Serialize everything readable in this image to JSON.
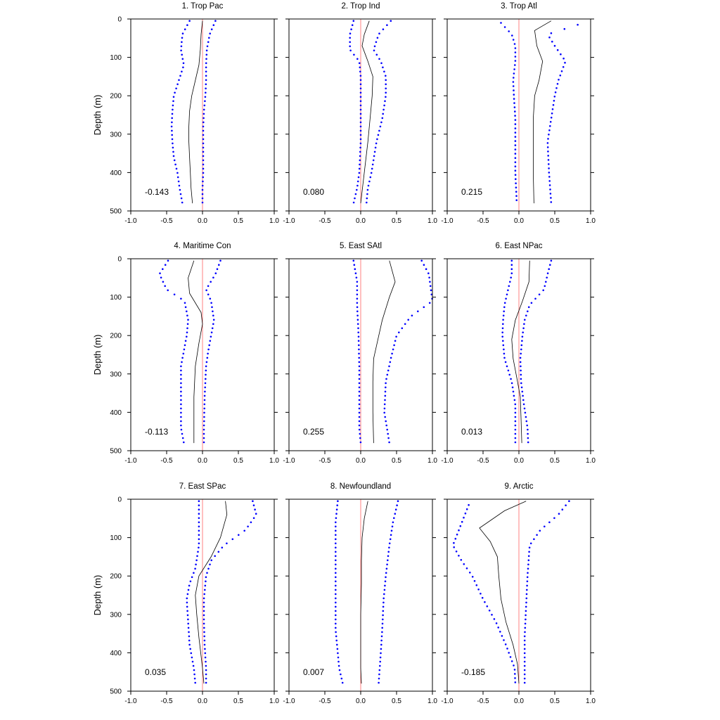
{
  "chart_data": [
    {
      "title": "1. Trop Pac",
      "ylabel": "Depth (m)",
      "annotation": "-0.143",
      "mean": [
        [
          0.0,
          5
        ],
        [
          -0.02,
          40
        ],
        [
          -0.03,
          80
        ],
        [
          -0.05,
          120
        ],
        [
          -0.1,
          160
        ],
        [
          -0.15,
          200
        ],
        [
          -0.18,
          240
        ],
        [
          -0.19,
          280
        ],
        [
          -0.19,
          320
        ],
        [
          -0.18,
          360
        ],
        [
          -0.17,
          400
        ],
        [
          -0.16,
          440
        ],
        [
          -0.14,
          480
        ]
      ],
      "lower": [
        [
          -0.18,
          5
        ],
        [
          -0.28,
          40
        ],
        [
          -0.3,
          80
        ],
        [
          -0.26,
          120
        ],
        [
          -0.33,
          160
        ],
        [
          -0.4,
          200
        ],
        [
          -0.42,
          240
        ],
        [
          -0.43,
          280
        ],
        [
          -0.42,
          320
        ],
        [
          -0.4,
          360
        ],
        [
          -0.35,
          400
        ],
        [
          -0.32,
          440
        ],
        [
          -0.28,
          480
        ]
      ],
      "upper": [
        [
          0.18,
          5
        ],
        [
          0.1,
          40
        ],
        [
          0.06,
          80
        ],
        [
          0.05,
          120
        ],
        [
          0.05,
          160
        ],
        [
          0.04,
          200
        ],
        [
          0.02,
          240
        ],
        [
          0.01,
          280
        ],
        [
          0.01,
          320
        ],
        [
          0.01,
          360
        ],
        [
          0.01,
          400
        ],
        [
          0.0,
          440
        ],
        [
          0.0,
          480
        ]
      ]
    },
    {
      "title": "2. Trop Ind",
      "ylabel": "",
      "annotation": "0.080",
      "mean": [
        [
          0.12,
          5
        ],
        [
          0.05,
          40
        ],
        [
          0.02,
          70
        ],
        [
          0.1,
          110
        ],
        [
          0.17,
          150
        ],
        [
          0.16,
          200
        ],
        [
          0.13,
          260
        ],
        [
          0.1,
          320
        ],
        [
          0.05,
          400
        ],
        [
          0.0,
          480
        ]
      ],
      "lower": [
        [
          -0.1,
          5
        ],
        [
          -0.15,
          40
        ],
        [
          -0.15,
          80
        ],
        [
          -0.02,
          110
        ],
        [
          0.0,
          150
        ],
        [
          0.0,
          200
        ],
        [
          0.0,
          260
        ],
        [
          0.0,
          320
        ],
        [
          -0.02,
          400
        ],
        [
          -0.05,
          440
        ],
        [
          -0.1,
          480
        ]
      ],
      "upper": [
        [
          0.42,
          5
        ],
        [
          0.25,
          40
        ],
        [
          0.18,
          80
        ],
        [
          0.28,
          110
        ],
        [
          0.35,
          150
        ],
        [
          0.35,
          200
        ],
        [
          0.3,
          260
        ],
        [
          0.22,
          320
        ],
        [
          0.15,
          400
        ],
        [
          0.1,
          440
        ],
        [
          0.08,
          480
        ]
      ]
    },
    {
      "title": "3. Trop Atl",
      "ylabel": "",
      "annotation": "0.215",
      "mean": [
        [
          0.45,
          5
        ],
        [
          0.22,
          30
        ],
        [
          0.25,
          70
        ],
        [
          0.33,
          110
        ],
        [
          0.28,
          160
        ],
        [
          0.22,
          200
        ],
        [
          0.2,
          260
        ],
        [
          0.2,
          320
        ],
        [
          0.2,
          400
        ],
        [
          0.21,
          480
        ]
      ],
      "lower": [
        [
          -0.25,
          10
        ],
        [
          -0.1,
          40
        ],
        [
          -0.05,
          70
        ],
        [
          -0.05,
          110
        ],
        [
          -0.08,
          160
        ],
        [
          -0.07,
          200
        ],
        [
          -0.05,
          260
        ],
        [
          -0.05,
          320
        ],
        [
          -0.05,
          400
        ],
        [
          -0.03,
          480
        ]
      ],
      "upper": [
        [
          0.82,
          15
        ],
        [
          0.4,
          40
        ],
        [
          0.5,
          70
        ],
        [
          0.65,
          110
        ],
        [
          0.55,
          160
        ],
        [
          0.5,
          200
        ],
        [
          0.45,
          260
        ],
        [
          0.4,
          320
        ],
        [
          0.42,
          400
        ],
        [
          0.45,
          480
        ]
      ]
    },
    {
      "title": "4. Maritime Con",
      "ylabel": "Depth (m)",
      "annotation": "-0.113",
      "mean": [
        [
          -0.12,
          5
        ],
        [
          -0.2,
          50
        ],
        [
          -0.18,
          90
        ],
        [
          -0.02,
          140
        ],
        [
          0.0,
          170
        ],
        [
          -0.05,
          220
        ],
        [
          -0.1,
          280
        ],
        [
          -0.12,
          360
        ],
        [
          -0.12,
          440
        ],
        [
          -0.12,
          480
        ]
      ],
      "lower": [
        [
          -0.48,
          5
        ],
        [
          -0.6,
          40
        ],
        [
          -0.5,
          80
        ],
        [
          -0.25,
          110
        ],
        [
          -0.2,
          160
        ],
        [
          -0.22,
          200
        ],
        [
          -0.26,
          240
        ],
        [
          -0.3,
          280
        ],
        [
          -0.3,
          360
        ],
        [
          -0.3,
          440
        ],
        [
          -0.26,
          480
        ]
      ],
      "upper": [
        [
          0.25,
          5
        ],
        [
          0.18,
          40
        ],
        [
          0.05,
          80
        ],
        [
          0.12,
          110
        ],
        [
          0.16,
          160
        ],
        [
          0.12,
          200
        ],
        [
          0.08,
          240
        ],
        [
          0.05,
          280
        ],
        [
          0.03,
          360
        ],
        [
          0.02,
          440
        ],
        [
          0.02,
          480
        ]
      ]
    },
    {
      "title": "5. East SAtl",
      "ylabel": "",
      "annotation": "0.255",
      "mean": [
        [
          0.4,
          5
        ],
        [
          0.48,
          60
        ],
        [
          0.4,
          100
        ],
        [
          0.3,
          160
        ],
        [
          0.24,
          210
        ],
        [
          0.18,
          260
        ],
        [
          0.17,
          320
        ],
        [
          0.17,
          400
        ],
        [
          0.18,
          480
        ]
      ],
      "lower": [
        [
          -0.1,
          5
        ],
        [
          -0.05,
          60
        ],
        [
          -0.05,
          120
        ],
        [
          -0.03,
          200
        ],
        [
          -0.02,
          280
        ],
        [
          -0.02,
          360
        ],
        [
          -0.02,
          440
        ],
        [
          0.0,
          480
        ]
      ],
      "upper": [
        [
          0.85,
          5
        ],
        [
          0.95,
          40
        ],
        [
          1.0,
          110
        ],
        [
          0.7,
          150
        ],
        [
          0.5,
          200
        ],
        [
          0.42,
          260
        ],
        [
          0.35,
          320
        ],
        [
          0.33,
          400
        ],
        [
          0.4,
          480
        ]
      ]
    },
    {
      "title": "6. East NPac",
      "ylabel": "",
      "annotation": "0.013",
      "mean": [
        [
          0.15,
          5
        ],
        [
          0.14,
          60
        ],
        [
          0.05,
          110
        ],
        [
          -0.05,
          160
        ],
        [
          -0.1,
          210
        ],
        [
          -0.08,
          260
        ],
        [
          -0.02,
          320
        ],
        [
          0.02,
          360
        ],
        [
          0.03,
          420
        ],
        [
          0.04,
          480
        ]
      ],
      "lower": [
        [
          -0.1,
          5
        ],
        [
          -0.1,
          40
        ],
        [
          -0.15,
          80
        ],
        [
          -0.2,
          120
        ],
        [
          -0.22,
          160
        ],
        [
          -0.23,
          200
        ],
        [
          -0.2,
          260
        ],
        [
          -0.1,
          320
        ],
        [
          -0.05,
          380
        ],
        [
          -0.05,
          440
        ],
        [
          -0.05,
          480
        ]
      ],
      "upper": [
        [
          0.45,
          5
        ],
        [
          0.4,
          40
        ],
        [
          0.35,
          80
        ],
        [
          0.15,
          120
        ],
        [
          0.08,
          160
        ],
        [
          0.05,
          200
        ],
        [
          0.02,
          260
        ],
        [
          0.03,
          320
        ],
        [
          0.07,
          380
        ],
        [
          0.12,
          440
        ],
        [
          0.13,
          480
        ]
      ]
    },
    {
      "title": "7. East SPac",
      "ylabel": "Depth (m)",
      "annotation": "0.035",
      "mean": [
        [
          0.32,
          5
        ],
        [
          0.34,
          40
        ],
        [
          0.25,
          100
        ],
        [
          0.12,
          150
        ],
        [
          -0.05,
          200
        ],
        [
          -0.1,
          250
        ],
        [
          -0.08,
          300
        ],
        [
          -0.05,
          360
        ],
        [
          0.0,
          440
        ],
        [
          0.02,
          480
        ]
      ],
      "lower": [
        [
          -0.05,
          5
        ],
        [
          -0.05,
          60
        ],
        [
          -0.05,
          120
        ],
        [
          -0.1,
          180
        ],
        [
          -0.18,
          220
        ],
        [
          -0.22,
          260
        ],
        [
          -0.2,
          320
        ],
        [
          -0.18,
          380
        ],
        [
          -0.12,
          440
        ],
        [
          -0.1,
          480
        ]
      ],
      "upper": [
        [
          0.7,
          5
        ],
        [
          0.75,
          40
        ],
        [
          0.6,
          80
        ],
        [
          0.3,
          120
        ],
        [
          0.12,
          160
        ],
        [
          0.05,
          200
        ],
        [
          0.02,
          260
        ],
        [
          0.02,
          320
        ],
        [
          0.03,
          380
        ],
        [
          0.05,
          440
        ],
        [
          0.05,
          480
        ]
      ]
    },
    {
      "title": "8. Newfoundland",
      "ylabel": "",
      "annotation": "0.007",
      "mean": [
        [
          0.1,
          5
        ],
        [
          0.05,
          50
        ],
        [
          0.02,
          100
        ],
        [
          0.01,
          160
        ],
        [
          0.01,
          220
        ],
        [
          0.0,
          300
        ],
        [
          0.0,
          380
        ],
        [
          0.0,
          440
        ],
        [
          0.01,
          480
        ]
      ],
      "lower": [
        [
          -0.32,
          5
        ],
        [
          -0.35,
          60
        ],
        [
          -0.35,
          120
        ],
        [
          -0.35,
          200
        ],
        [
          -0.35,
          280
        ],
        [
          -0.35,
          340
        ],
        [
          -0.32,
          400
        ],
        [
          -0.3,
          440
        ],
        [
          -0.25,
          480
        ]
      ],
      "upper": [
        [
          0.52,
          5
        ],
        [
          0.45,
          60
        ],
        [
          0.4,
          120
        ],
        [
          0.35,
          200
        ],
        [
          0.32,
          260
        ],
        [
          0.3,
          340
        ],
        [
          0.28,
          400
        ],
        [
          0.25,
          480
        ]
      ]
    },
    {
      "title": "9. Arctic",
      "ylabel": "",
      "annotation": "-0.185",
      "mean": [
        [
          0.1,
          5
        ],
        [
          -0.2,
          30
        ],
        [
          -0.55,
          75
        ],
        [
          -0.4,
          110
        ],
        [
          -0.3,
          150
        ],
        [
          -0.28,
          200
        ],
        [
          -0.25,
          260
        ],
        [
          -0.18,
          320
        ],
        [
          -0.08,
          380
        ],
        [
          -0.02,
          430
        ],
        [
          0.0,
          480
        ]
      ],
      "lower": [
        [
          -0.7,
          15
        ],
        [
          -0.92,
          120
        ],
        [
          -0.8,
          160
        ],
        [
          -0.65,
          200
        ],
        [
          -0.5,
          260
        ],
        [
          -0.32,
          320
        ],
        [
          -0.18,
          380
        ],
        [
          -0.06,
          440
        ],
        [
          -0.05,
          480
        ]
      ],
      "upper": [
        [
          0.7,
          5
        ],
        [
          0.55,
          40
        ],
        [
          0.3,
          80
        ],
        [
          0.15,
          120
        ],
        [
          0.12,
          200
        ],
        [
          0.1,
          280
        ],
        [
          0.08,
          360
        ],
        [
          0.08,
          440
        ],
        [
          0.08,
          480
        ]
      ]
    }
  ],
  "axes": {
    "xticks": [
      "-1.0",
      "-0.5",
      "0.0",
      "0.5",
      "1.0"
    ],
    "yticks": [
      "0",
      "100",
      "200",
      "300",
      "400",
      "500"
    ],
    "xlim": [
      -1.0,
      1.0
    ],
    "ylim": [
      0,
      500
    ]
  },
  "colors": {
    "mean": "#000000",
    "bounds": "#0000ff",
    "zero_line": "#ff8080",
    "frame": "#000000"
  }
}
